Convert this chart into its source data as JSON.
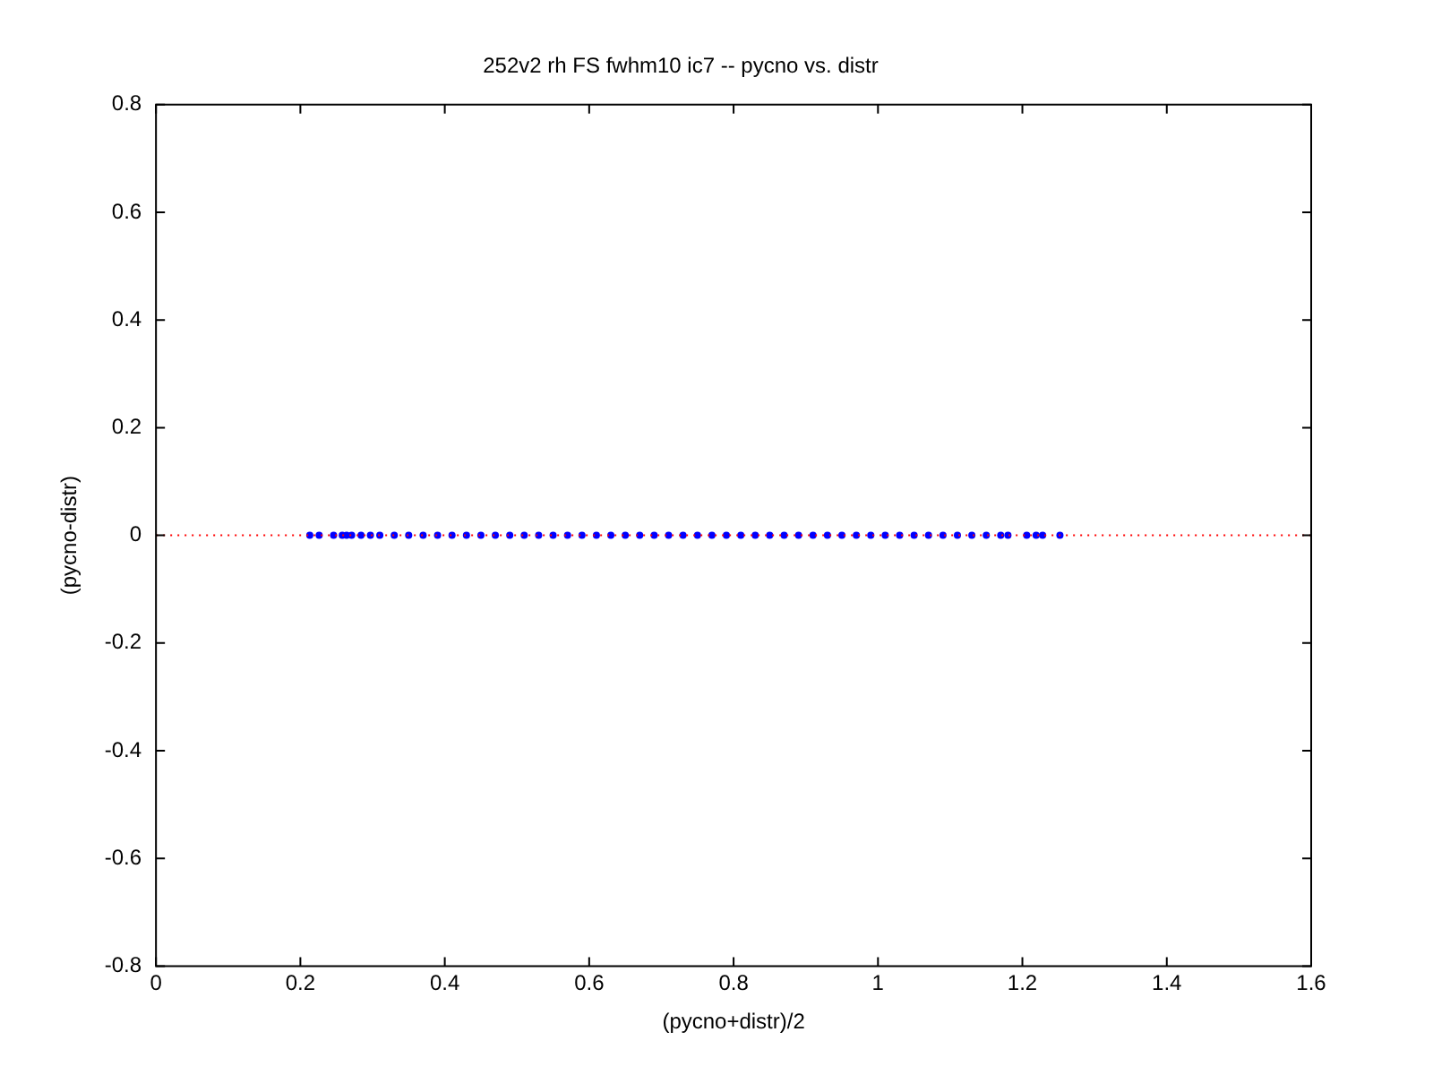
{
  "chart_data": {
    "type": "scatter",
    "title": "252v2 rh FS fwhm10 ic7 -- pycno vs. distr",
    "xlabel": "(pycno+distr)/2",
    "ylabel": "(pycno-distr)",
    "xlim": [
      0,
      1.6
    ],
    "xticks": [
      0,
      0.2,
      0.4,
      0.6,
      0.8,
      1,
      1.2,
      1.4,
      1.6
    ],
    "ylim": [
      -0.8,
      0.8
    ],
    "yticks": [
      -0.8,
      -0.6,
      -0.4,
      -0.2,
      0,
      0.2,
      0.4,
      0.6,
      0.8
    ],
    "grid": false,
    "legend": false,
    "marker": "circle",
    "series": [
      {
        "color": "#0000ff",
        "x": [
          0.213,
          0.226,
          0.246,
          0.258,
          0.264,
          0.271,
          0.284,
          0.297,
          0.31,
          0.33,
          0.35,
          0.37,
          0.39,
          0.41,
          0.43,
          0.45,
          0.47,
          0.49,
          0.51,
          0.53,
          0.55,
          0.57,
          0.59,
          0.61,
          0.63,
          0.65,
          0.67,
          0.69,
          0.71,
          0.73,
          0.75,
          0.77,
          0.79,
          0.81,
          0.83,
          0.85,
          0.87,
          0.89,
          0.91,
          0.93,
          0.95,
          0.97,
          0.99,
          1.01,
          1.03,
          1.05,
          1.07,
          1.09,
          1.11,
          1.13,
          1.15,
          1.17,
          1.18,
          1.206,
          1.219,
          1.228,
          1.252
        ],
        "values": [
          0,
          0,
          0,
          0,
          0,
          0,
          0,
          0,
          0,
          0,
          0,
          0,
          0,
          0,
          0,
          0,
          0,
          0,
          0,
          0,
          0,
          0,
          0,
          0,
          0,
          0,
          0,
          0,
          0,
          0,
          0,
          0,
          0,
          0,
          0,
          0,
          0,
          0,
          0,
          0,
          0,
          0,
          0,
          0,
          0,
          0,
          0,
          0,
          0,
          0,
          0,
          0,
          0,
          0,
          0,
          0,
          0
        ]
      }
    ],
    "ref_lines": [
      {
        "axis": "y",
        "value": 0,
        "color": "#ff0000",
        "line_style": "dotted"
      }
    ]
  }
}
